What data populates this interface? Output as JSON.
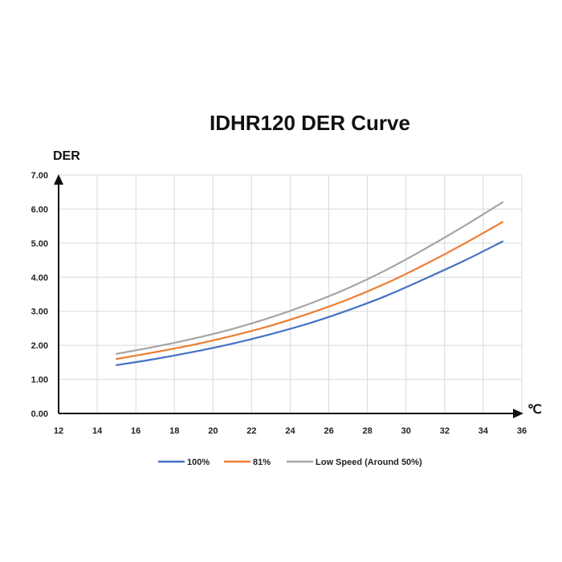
{
  "chart_data": {
    "type": "line",
    "title": "IDHR120  DER Curve",
    "xlabel": "℃",
    "ylabel": "DER",
    "xlim": [
      12,
      36
    ],
    "ylim": [
      0,
      7
    ],
    "x_ticks": [
      "12",
      "14",
      "16",
      "18",
      "20",
      "22",
      "24",
      "26",
      "28",
      "30",
      "32",
      "34",
      "36"
    ],
    "y_ticks": [
      "0.00",
      "1.00",
      "2.00",
      "3.00",
      "4.00",
      "5.00",
      "6.00",
      "7.00"
    ],
    "grid": true,
    "legend_position": "bottom",
    "x": [
      15,
      17,
      19,
      21,
      23,
      25,
      27,
      29,
      31,
      33,
      35
    ],
    "series": [
      {
        "name": "100%",
        "color": "#4472c4",
        "values": [
          1.42,
          1.6,
          1.81,
          2.05,
          2.33,
          2.65,
          3.03,
          3.46,
          3.96,
          4.48,
          5.05
        ]
      },
      {
        "name": "81%",
        "color": "#ed7d31",
        "values": [
          1.6,
          1.8,
          2.02,
          2.28,
          2.58,
          2.94,
          3.35,
          3.83,
          4.38,
          4.98,
          5.62
        ]
      },
      {
        "name": "Low Speed (Around 50%)",
        "color": "#a5a5a5",
        "values": [
          1.75,
          1.96,
          2.2,
          2.48,
          2.82,
          3.22,
          3.68,
          4.22,
          4.84,
          5.5,
          6.2
        ]
      }
    ]
  }
}
